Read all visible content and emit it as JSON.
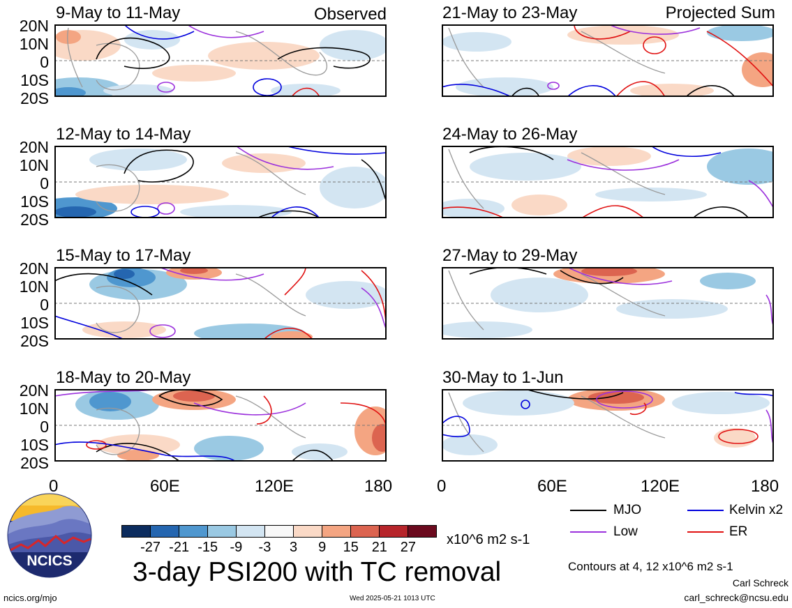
{
  "panels": [
    {
      "date_range": "9-May to 11-May",
      "corner_label": "Observed"
    },
    {
      "date_range": "21-May to 23-May",
      "corner_label": "Projected Sum"
    },
    {
      "date_range": "12-May to 14-May",
      "corner_label": ""
    },
    {
      "date_range": "24-May to 26-May",
      "corner_label": ""
    },
    {
      "date_range": "15-May to 17-May",
      "corner_label": ""
    },
    {
      "date_range": "27-May to 29-May",
      "corner_label": ""
    },
    {
      "date_range": "18-May to 20-May",
      "corner_label": ""
    },
    {
      "date_range": "30-May to 1-Jun",
      "corner_label": ""
    }
  ],
  "lat_ticks": [
    "20N",
    "10N",
    "0",
    "10S",
    "20S"
  ],
  "lon_ticks": [
    "0",
    "60E",
    "120E",
    "180"
  ],
  "colorbar": {
    "colors": [
      "#0c2c5e",
      "#2566b0",
      "#4f97cf",
      "#9ac9e3",
      "#d3e5f2",
      "#f8f8f8",
      "#fad9c6",
      "#f4a582",
      "#dc6450",
      "#b7252b",
      "#6b0a1e"
    ],
    "ticks": [
      "-27",
      "-21",
      "-15",
      "-9",
      "-3",
      "3",
      "9",
      "15",
      "21",
      "27"
    ],
    "units": "x10^6 m2 s-1"
  },
  "legend": [
    {
      "label": "MJO",
      "color": "#000000"
    },
    {
      "label": "Kelvin x2",
      "color": "#0000dd"
    },
    {
      "label": "Low",
      "color": "#9b30dc"
    },
    {
      "label": "ER",
      "color": "#e01010"
    }
  ],
  "title": "3-day PSI200 with TC removal",
  "contour_note": "Contours at 4, 12 x10^6 m2 s-1",
  "author": "Carl Schreck",
  "email": "carl_schreck@ncsu.edu",
  "url": "ncics.org/mjo",
  "timestamp": "Wed 2025-05-21 1013 UTC",
  "logo_text": "NCICS"
}
